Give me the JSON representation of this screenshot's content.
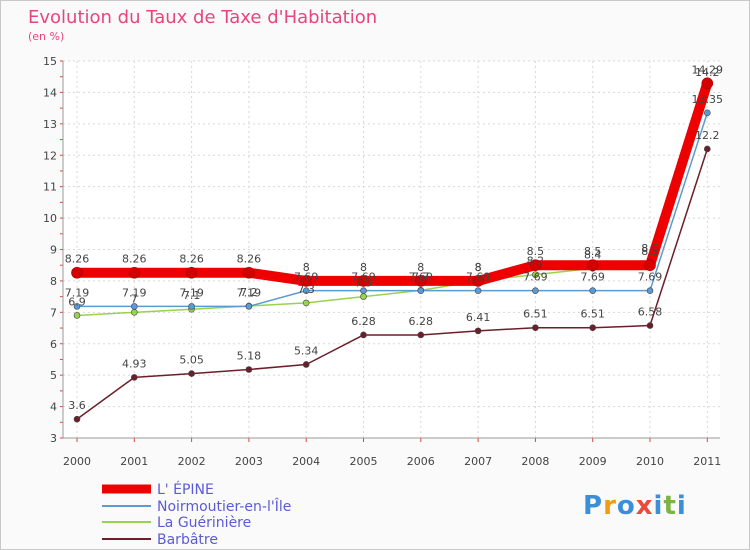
{
  "chart_data": {
    "type": "line",
    "title": "Evolution du Taux de Taxe d'Habitation",
    "unit_label": "(en %)",
    "categories": [
      "2000",
      "2001",
      "2002",
      "2003",
      "2004",
      "2005",
      "2006",
      "2007",
      "2008",
      "2009",
      "2010",
      "2011"
    ],
    "ylim": [
      3,
      15
    ],
    "yticks": [
      3,
      4,
      5,
      6,
      7,
      8,
      9,
      10,
      11,
      12,
      13,
      14,
      15
    ],
    "series": [
      {
        "name": "L' ÉPINE",
        "color": "#ee0000",
        "values": [
          8.26,
          8.26,
          8.26,
          8.26,
          8,
          8,
          8,
          8,
          8.5,
          8.5,
          8.5,
          14.29
        ],
        "labels": [
          "8.26",
          "8.26",
          "8.26",
          "8.26",
          "8",
          "8",
          "8",
          "8",
          "8.5",
          "8.5",
          "8.5",
          "14.29"
        ]
      },
      {
        "name": "Noirmoutier-en-l'Île",
        "color": "#5a9bd4",
        "values": [
          7.19,
          7.19,
          7.19,
          7.19,
          7.69,
          7.69,
          7.69,
          7.69,
          7.69,
          7.69,
          7.69,
          13.35
        ],
        "labels": [
          "7.19",
          "7.19",
          "7.19",
          "7.19",
          "7.69",
          "7.69",
          "7.69",
          "7.69",
          "7.69",
          "7.69",
          "7.69",
          "13.35"
        ]
      },
      {
        "name": "La Guérinière",
        "color": "#99d24b",
        "values": [
          6.9,
          7,
          7.1,
          7.2,
          7.3,
          7.5,
          7.7,
          8,
          8.2,
          8.4,
          8.6,
          14.2
        ],
        "labels": [
          "6.9",
          "7",
          "7.1",
          "7.2",
          "7.3",
          "7.5",
          "7.7",
          "8",
          "8.2",
          "8.4",
          "8.6",
          "14.2"
        ]
      },
      {
        "name": "Barbâtre",
        "color": "#6b1f2a",
        "values": [
          3.6,
          4.93,
          5.05,
          5.18,
          5.34,
          6.28,
          6.28,
          6.41,
          6.51,
          6.51,
          6.58,
          12.2
        ],
        "labels": [
          "3.6",
          "4.93",
          "5.05",
          "5.18",
          "5.34",
          "6.28",
          "6.28",
          "6.41",
          "6.51",
          "6.51",
          "6.58",
          "12.2"
        ]
      }
    ]
  },
  "brand": {
    "letters": [
      "P",
      "r",
      "o",
      "x",
      "i",
      "t",
      "i"
    ],
    "colors": [
      "#3a8fd8",
      "#f39c12",
      "#3a8fd8",
      "#e74c3c",
      "#3a8fd8",
      "#7cb342",
      "#3a8fd8"
    ]
  }
}
